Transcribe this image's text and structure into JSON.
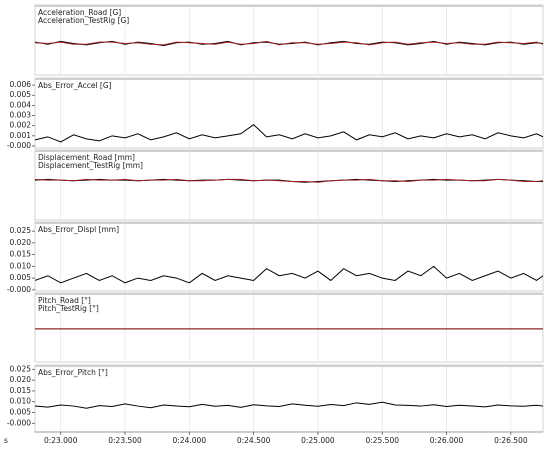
{
  "chart_data": [
    {
      "type": "line",
      "x": [
        22.8,
        22.9,
        23,
        23.1,
        23.2,
        23.3,
        23.4,
        23.5,
        23.6,
        23.7,
        23.8,
        23.9,
        24,
        24.1,
        24.2,
        24.3,
        24.4,
        24.5,
        24.6,
        24.7,
        24.8,
        24.9,
        25,
        25.1,
        25.2,
        25.3,
        25.4,
        25.5,
        25.6,
        25.7,
        25.8,
        25.9,
        26,
        26.1,
        26.2,
        26.3,
        26.4,
        26.5,
        26.6,
        26.7,
        26.75
      ],
      "series": [
        {
          "name": "Acceleration_Road [G]",
          "color": "#000000",
          "values": [
            0.02,
            -0.01,
            0.03,
            0,
            -0.02,
            0.01,
            0.03,
            -0.01,
            0.02,
            0,
            -0.03,
            0.01,
            0.02,
            -0.01,
            0,
            0.03,
            -0.02,
            0.01,
            0.02,
            -0.01,
            0,
            0.02,
            -0.02,
            0.01,
            0.03,
            0,
            -0.01,
            0.02,
            0.01,
            -0.02,
            0,
            0.03,
            -0.01,
            0.02,
            0,
            -0.02,
            0.01,
            0.02,
            -0.01,
            0.01,
            0
          ]
        },
        {
          "name": "Acceleration_TestRig [G]",
          "color": "#9b2323",
          "values": [
            0.01,
            0,
            0.02,
            -0.01,
            -0.01,
            0.02,
            0.02,
            0,
            0.01,
            -0.01,
            -0.02,
            0.02,
            0.01,
            0,
            -0.01,
            0.02,
            -0.01,
            0,
            0.03,
            -0.02,
            0.01,
            0.01,
            -0.01,
            0,
            0.02,
            0.01,
            -0.02,
            0.01,
            0.02,
            -0.01,
            0.01,
            0.02,
            0,
            0.01,
            -0.01,
            -0.01,
            0.02,
            0.01,
            0,
            0.02,
            -0.01
          ]
        }
      ],
      "ylim": [
        -0.45,
        0.55
      ]
    },
    {
      "type": "line",
      "x": [
        22.8,
        22.9,
        23,
        23.1,
        23.2,
        23.3,
        23.4,
        23.5,
        23.6,
        23.7,
        23.8,
        23.9,
        24,
        24.1,
        24.2,
        24.3,
        24.4,
        24.5,
        24.6,
        24.7,
        24.8,
        24.9,
        25,
        25.1,
        25.2,
        25.3,
        25.4,
        25.5,
        25.6,
        25.7,
        25.8,
        25.9,
        26,
        26.1,
        26.2,
        26.3,
        26.4,
        26.5,
        26.6,
        26.7,
        26.75
      ],
      "series": [
        {
          "name": "Abs_Error_Accel [G]",
          "color": "#000000",
          "values": [
            0.0006,
            0.0009,
            0.0004,
            0.0011,
            0.0007,
            0.0005,
            0.001,
            0.0008,
            0.0012,
            0.0006,
            0.0009,
            0.0013,
            0.0007,
            0.0011,
            0.0008,
            0.001,
            0.0012,
            0.0021,
            0.0009,
            0.0011,
            0.0007,
            0.0012,
            0.0008,
            0.001,
            0.0014,
            0.0006,
            0.0011,
            0.0009,
            0.0013,
            0.0007,
            0.001,
            0.0008,
            0.0012,
            0.0009,
            0.0011,
            0.0007,
            0.0013,
            0.001,
            0.0008,
            0.0012,
            0.0009
          ]
        }
      ],
      "ylim": [
        -0.0002,
        0.0067
      ],
      "yticks": [
        {
          "value": 0,
          "label": "-0.000"
        },
        0.001,
        0.002,
        0.003,
        0.004,
        0.005,
        0.006
      ]
    },
    {
      "type": "line",
      "x": [
        22.8,
        22.9,
        23,
        23.1,
        23.2,
        23.3,
        23.4,
        23.5,
        23.6,
        23.7,
        23.8,
        23.9,
        24,
        24.1,
        24.2,
        24.3,
        24.4,
        24.5,
        24.6,
        24.7,
        24.8,
        24.9,
        25,
        25.1,
        25.2,
        25.3,
        25.4,
        25.5,
        25.6,
        25.7,
        25.8,
        25.9,
        26,
        26.1,
        26.2,
        26.3,
        26.4,
        26.5,
        26.6,
        26.7,
        26.75
      ],
      "series": [
        {
          "name": "Displacement_Road [mm]",
          "color": "#000000",
          "values": [
            0,
            0.01,
            0,
            -0.01,
            0,
            0.01,
            0,
            0,
            -0.01,
            0,
            0.01,
            0,
            -0.01,
            0,
            0,
            0.01,
            0,
            -0.01,
            0,
            0,
            -0.02,
            -0.03,
            -0.02,
            -0.01,
            0,
            0.01,
            0,
            -0.01,
            -0.02,
            -0.01,
            0,
            0.01,
            0,
            0,
            -0.01,
            0,
            0.01,
            0,
            -0.01,
            -0.02,
            -0.02
          ]
        },
        {
          "name": "Displacement_TestRig [mm]",
          "color": "#9b2323",
          "values": [
            0.01,
            0,
            0,
            -0.01,
            0.01,
            0,
            0,
            0.01,
            -0.01,
            0,
            0,
            0.01,
            -0.01,
            -0.01,
            0,
            0.01,
            0.01,
            -0.01,
            0,
            -0.01,
            -0.02,
            -0.02,
            -0.03,
            -0.01,
            0,
            0,
            0.01,
            -0.01,
            -0.01,
            -0.02,
            0,
            0,
            0.01,
            0,
            -0.01,
            -0.01,
            0.01,
            0,
            -0.02,
            -0.02,
            -0.01
          ]
        }
      ],
      "ylim": [
        -0.57,
        0.43
      ]
    },
    {
      "type": "line",
      "x": [
        22.8,
        22.9,
        23,
        23.1,
        23.2,
        23.3,
        23.4,
        23.5,
        23.6,
        23.7,
        23.8,
        23.9,
        24,
        24.1,
        24.2,
        24.3,
        24.4,
        24.5,
        24.6,
        24.7,
        24.8,
        24.9,
        25,
        25.1,
        25.2,
        25.3,
        25.4,
        25.5,
        25.6,
        25.7,
        25.8,
        25.9,
        26,
        26.1,
        26.2,
        26.3,
        26.4,
        26.5,
        26.6,
        26.7,
        26.75
      ],
      "series": [
        {
          "name": "Abs_Error_Displ [mm]",
          "color": "#000000",
          "values": [
            0.004,
            0.006,
            0.003,
            0.005,
            0.007,
            0.004,
            0.006,
            0.003,
            0.005,
            0.004,
            0.006,
            0.005,
            0.003,
            0.007,
            0.004,
            0.006,
            0.005,
            0.004,
            0.009,
            0.006,
            0.007,
            0.005,
            0.008,
            0.004,
            0.009,
            0.006,
            0.007,
            0.005,
            0.004,
            0.008,
            0.006,
            0.01,
            0.005,
            0.007,
            0.004,
            0.006,
            0.008,
            0.005,
            0.007,
            0.004,
            0.006
          ]
        }
      ],
      "ylim": [
        -0.0005,
        0.0289
      ],
      "yticks": [
        {
          "value": 0,
          "label": "-0.000"
        },
        0.005,
        {
          "value": 0.01,
          "label": "0.010"
        },
        0.015,
        {
          "value": 0.02,
          "label": "0.020"
        },
        0.025
      ]
    },
    {
      "type": "line",
      "x": [
        22.8,
        22.9,
        23,
        23.1,
        23.2,
        23.3,
        23.4,
        23.5,
        23.6,
        23.7,
        23.8,
        23.9,
        24,
        24.1,
        24.2,
        24.3,
        24.4,
        24.5,
        24.6,
        24.7,
        24.8,
        24.9,
        25,
        25.1,
        25.2,
        25.3,
        25.4,
        25.5,
        25.6,
        25.7,
        25.8,
        25.9,
        26,
        26.1,
        26.2,
        26.3,
        26.4,
        26.5,
        26.6,
        26.7,
        26.75
      ],
      "series": [
        {
          "name": "Pitch_Road [°]",
          "color": "#000000",
          "values": [
            0,
            0,
            0,
            0,
            0,
            0,
            0,
            0,
            0,
            0,
            0,
            0,
            0,
            0,
            0,
            0,
            0,
            0,
            0,
            0,
            0,
            0,
            0,
            0,
            0,
            0,
            0,
            0,
            0,
            0,
            0,
            0,
            0,
            0,
            0,
            0,
            0,
            0,
            0,
            0,
            0
          ]
        },
        {
          "name": "Pitch_TestRig [°]",
          "color": "#9b2323",
          "values": [
            0,
            0,
            0,
            0,
            0,
            0,
            0,
            0,
            0,
            0,
            0,
            0,
            0,
            0,
            0,
            0,
            0,
            0,
            0,
            0,
            0,
            0,
            0,
            0,
            0,
            0,
            0,
            0,
            0,
            0,
            0,
            0,
            0,
            0,
            0,
            0,
            0,
            0,
            0,
            0,
            0
          ]
        }
      ],
      "ylim": [
        -0.48,
        0.52
      ]
    },
    {
      "type": "line",
      "x": [
        22.8,
        22.9,
        23,
        23.1,
        23.2,
        23.3,
        23.4,
        23.5,
        23.6,
        23.7,
        23.8,
        23.9,
        24,
        24.1,
        24.2,
        24.3,
        24.4,
        24.5,
        24.6,
        24.7,
        24.8,
        24.9,
        25,
        25.1,
        25.2,
        25.3,
        25.4,
        25.5,
        25.6,
        25.7,
        25.8,
        25.9,
        26,
        26.1,
        26.2,
        26.3,
        26.4,
        26.5,
        26.6,
        26.7,
        26.75
      ],
      "series": [
        {
          "name": "Abs_Error_Pitch [°]",
          "color": "#000000",
          "values": [
            0.008,
            0.0075,
            0.0085,
            0.008,
            0.007,
            0.0082,
            0.0078,
            0.009,
            0.008,
            0.0072,
            0.0085,
            0.008,
            0.0077,
            0.0088,
            0.0079,
            0.0083,
            0.0074,
            0.0086,
            0.0081,
            0.0078,
            0.009,
            0.0084,
            0.0079,
            0.0087,
            0.0082,
            0.0095,
            0.0088,
            0.0098,
            0.0085,
            0.0083,
            0.008,
            0.0086,
            0.0078,
            0.0084,
            0.008,
            0.0076,
            0.0085,
            0.0081,
            0.0079,
            0.0084,
            0.008
          ]
        }
      ],
      "ylim": [
        -0.004,
        0.027
      ],
      "yticks": [
        {
          "value": 0,
          "label": "-0.000"
        },
        0.005,
        {
          "value": 0.01,
          "label": "0.010"
        },
        0.015,
        {
          "value": 0.02,
          "label": "0.020"
        },
        0.025
      ],
      "xlabel": "s",
      "xlim": [
        22.8,
        26.75
      ],
      "xticks": [
        {
          "value": 23,
          "label": "0:23.000"
        },
        {
          "value": 23.5,
          "label": "0:23.500"
        },
        {
          "value": 24,
          "label": "0:24.000"
        },
        {
          "value": 24.5,
          "label": "0:24.500"
        },
        {
          "value": 25,
          "label": "0:25.000"
        },
        {
          "value": 25.5,
          "label": "0:25.500"
        },
        {
          "value": 26,
          "label": "0:26.000"
        },
        {
          "value": 26.5,
          "label": "0:26.500"
        }
      ]
    }
  ]
}
